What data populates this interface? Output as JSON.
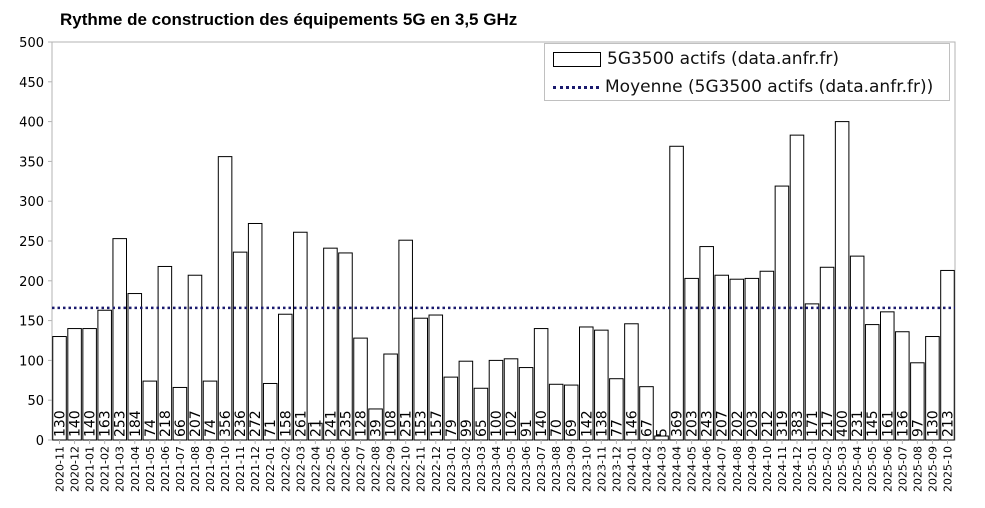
{
  "chart_data": {
    "type": "bar",
    "title": "Rythme de construction des équipements 5G en 3,5 GHz",
    "ylim": [
      0,
      500
    ],
    "yticks": [
      0,
      50,
      100,
      150,
      200,
      250,
      300,
      350,
      400,
      450,
      500
    ],
    "grid": false,
    "legend_position": "top-right",
    "categories": [
      "2020-11",
      "2020-12",
      "2021-01",
      "2021-02",
      "2021-03",
      "2021-04",
      "2021-05",
      "2021-06",
      "2021-07",
      "2021-08",
      "2021-09",
      "2021-10",
      "2021-11",
      "2021-12",
      "2022-01",
      "2022-02",
      "2022-03",
      "2022-04",
      "2022-05",
      "2022-06",
      "2022-07",
      "2022-08",
      "2022-09",
      "2022-10",
      "2022-11",
      "2022-12",
      "2023-01",
      "2023-02",
      "2023-03",
      "2023-04",
      "2023-05",
      "2023-06",
      "2023-07",
      "2023-08",
      "2023-09",
      "2023-10",
      "2023-11",
      "2023-12",
      "2024-01",
      "2024-02",
      "2024-03",
      "2024-04",
      "2024-05",
      "2024-06",
      "2024-07",
      "2024-08",
      "2024-09",
      "2024-10",
      "2024-11",
      "2024-12",
      "2025-01",
      "2025-02",
      "2025-03",
      "2025-04",
      "2025-05",
      "2025-06",
      "2025-07",
      "2025-08",
      "2025-09",
      "2025-10"
    ],
    "series": [
      {
        "name": "5G3500 actifs (data.anfr.fr)",
        "values": [
          130,
          140,
          140,
          163,
          253,
          184,
          74,
          218,
          66,
          207,
          74,
          356,
          236,
          272,
          71,
          158,
          261,
          21,
          241,
          235,
          128,
          39,
          108,
          251,
          153,
          157,
          79,
          99,
          65,
          100,
          102,
          91,
          140,
          70,
          69,
          142,
          138,
          77,
          146,
          67,
          5,
          369,
          203,
          243,
          207,
          202,
          203,
          212,
          319,
          383,
          171,
          217,
          400,
          231,
          145,
          161,
          136,
          97,
          130,
          213
        ]
      },
      {
        "name": "Moyenne (5G3500 actifs (data.anfr.fr))",
        "value": 166,
        "style": "dotted",
        "color": "#1a1a6e"
      }
    ]
  },
  "legend": {
    "bars_label": "5G3500 actifs (data.anfr.fr)",
    "mean_label": "Moyenne (5G3500 actifs (data.anfr.fr))"
  }
}
